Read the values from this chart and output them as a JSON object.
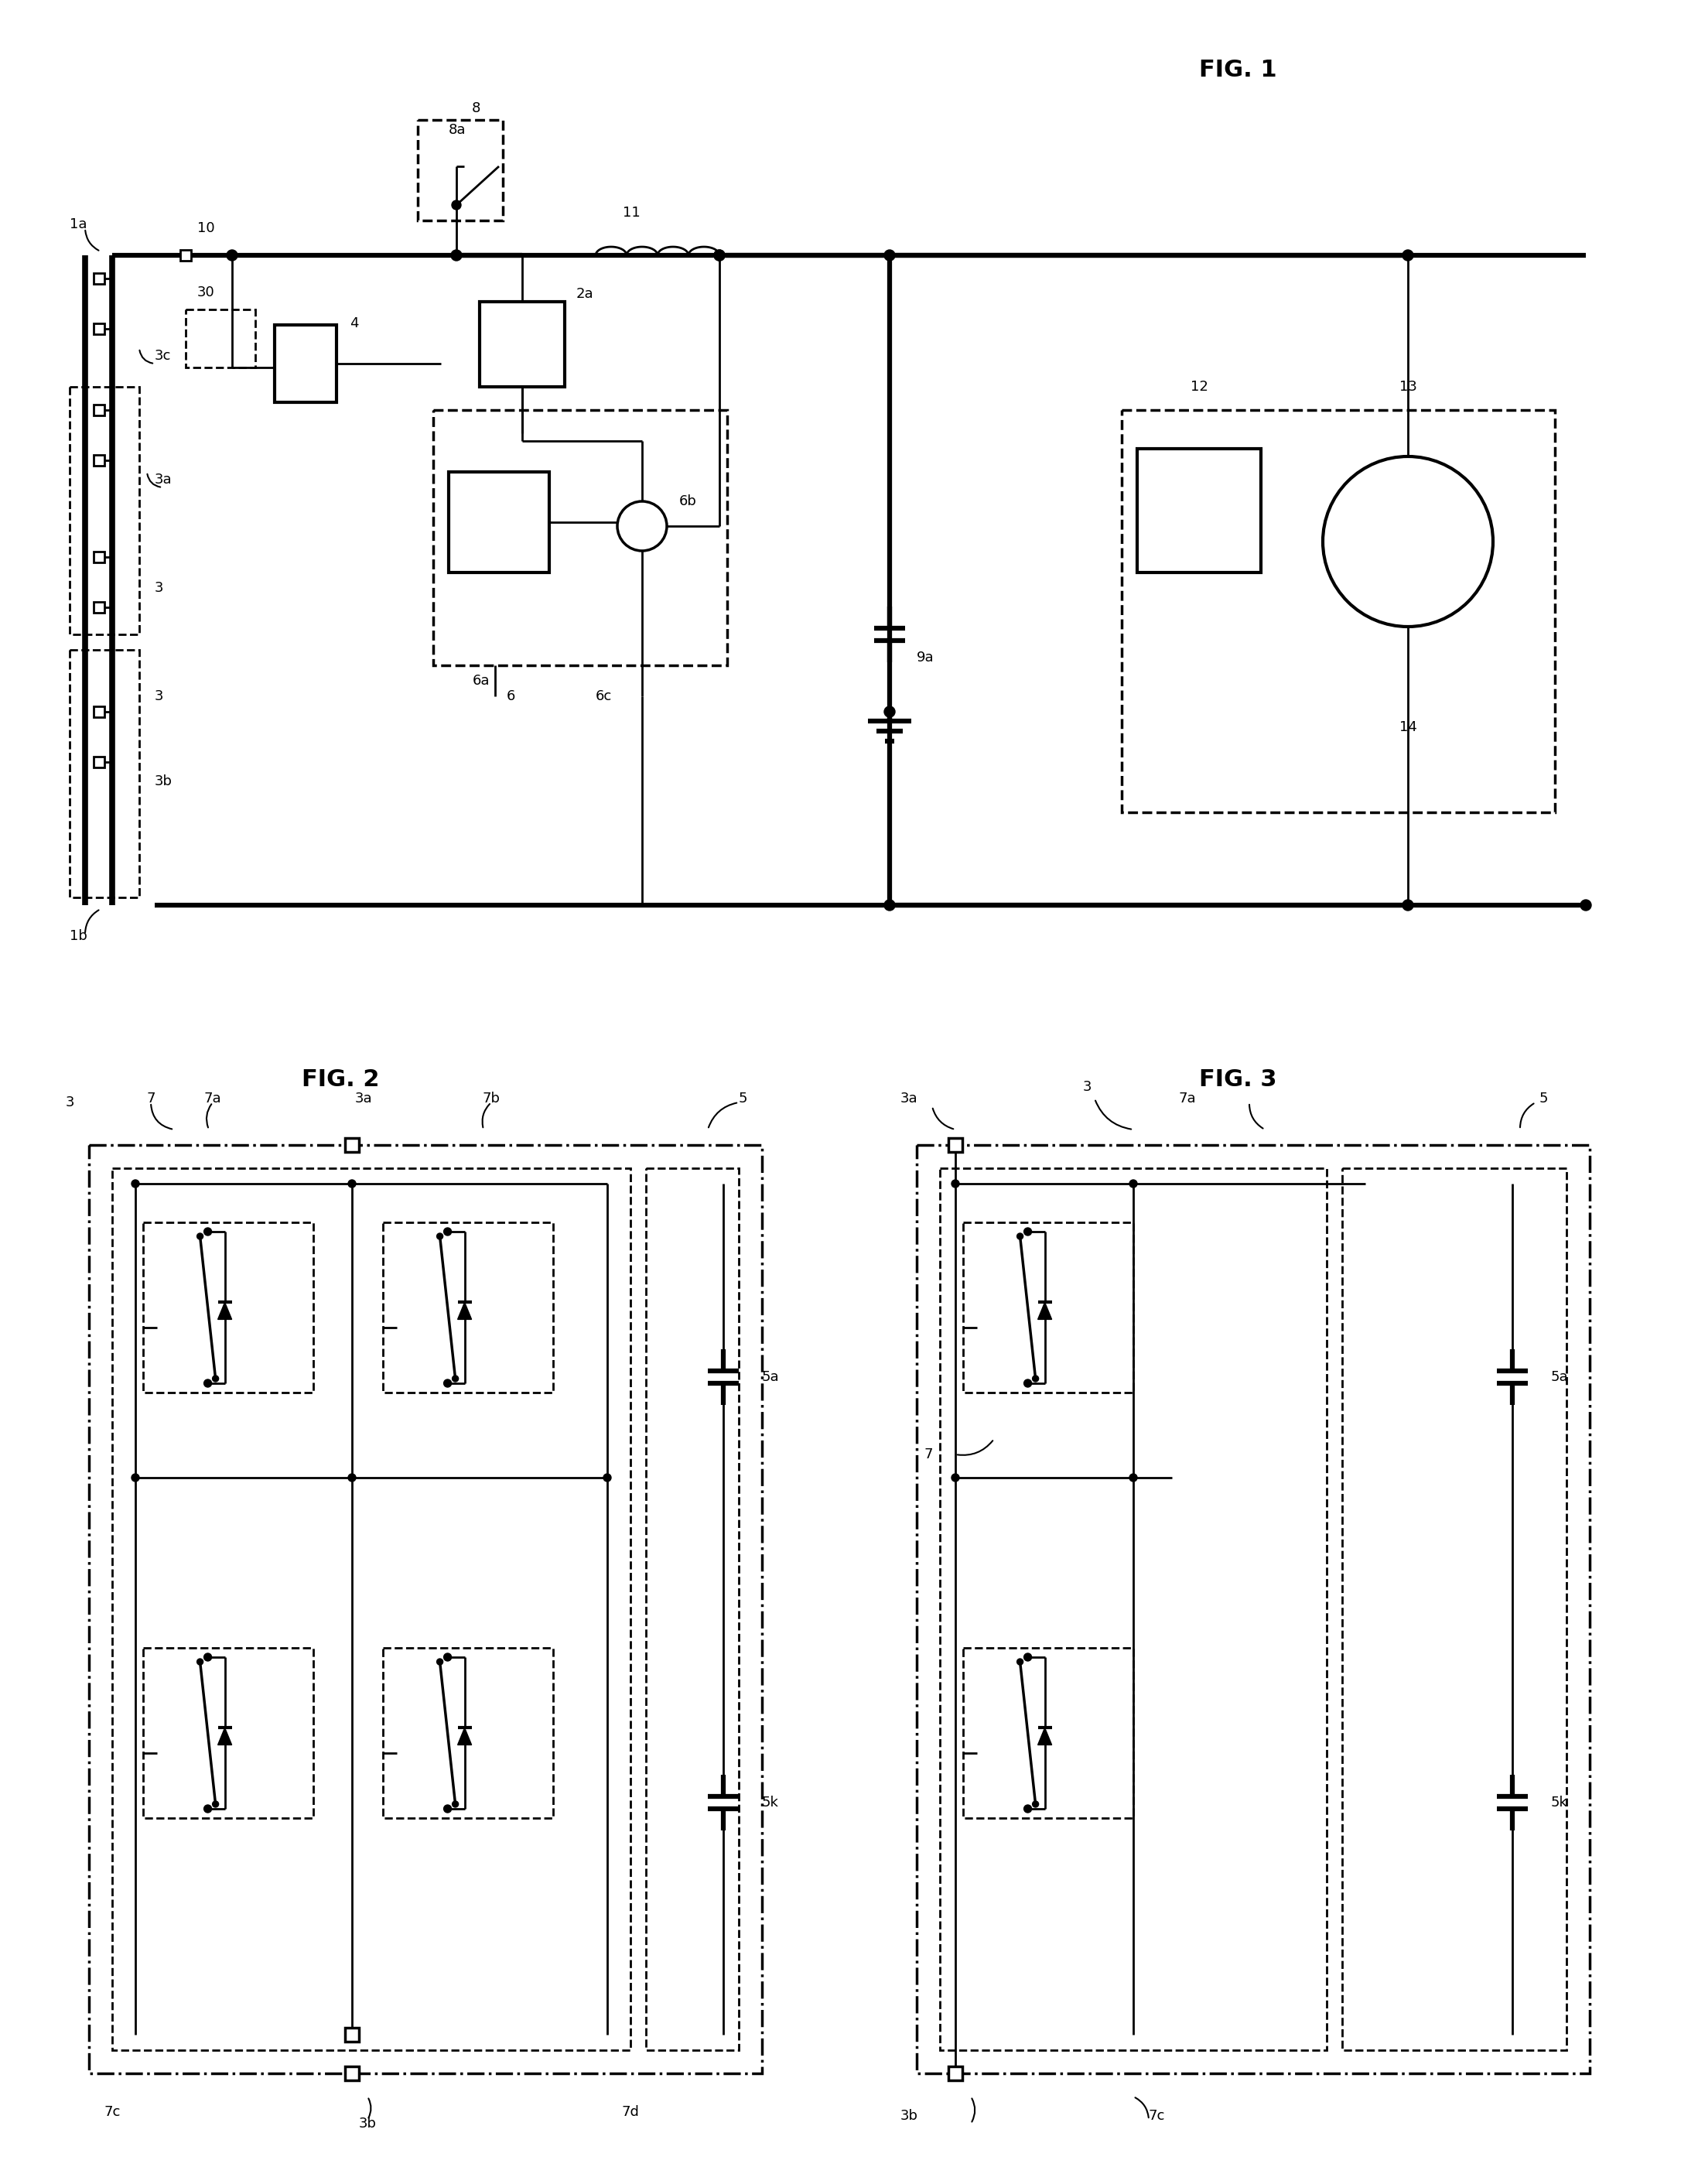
{
  "fig_width": 21.95,
  "fig_height": 28.23,
  "bg_color": "#ffffff",
  "lw": 2.0,
  "tlw": 4.5,
  "fig1_title": "FIG. 1",
  "fig2_title": "FIG. 2",
  "fig3_title": "FIG. 3",
  "font_size_label": 13,
  "font_size_title": 22
}
